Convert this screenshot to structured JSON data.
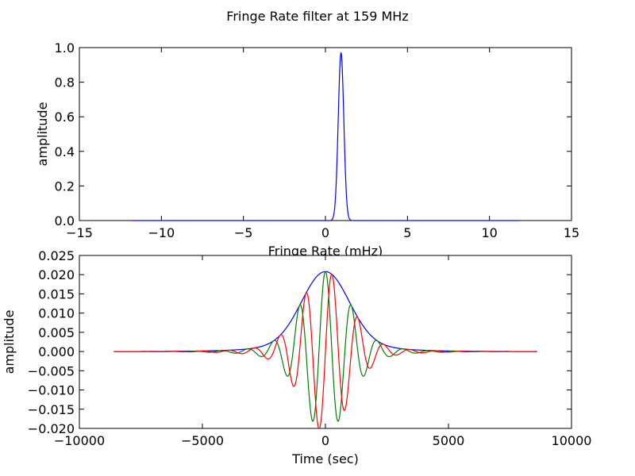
{
  "figure": {
    "title": "Fringe Rate filter at 159 MHz"
  },
  "chart_data": [
    {
      "type": "line",
      "xlabel": "Fringe Rate (mHz)",
      "ylabel": "amplitude",
      "xlim": [
        -15,
        15
      ],
      "ylim": [
        0,
        1.0
      ],
      "x_ticks": [
        -15,
        -10,
        -5,
        0,
        5,
        10,
        15
      ],
      "x_tick_labels": [
        "−15",
        "−10",
        "−5",
        "0",
        "5",
        "10",
        "15"
      ],
      "y_ticks": [
        0,
        0.2,
        0.4,
        0.6,
        0.8,
        1.0
      ],
      "y_tick_labels": [
        "0.0",
        "0.2",
        "0.4",
        "0.6",
        "0.8",
        "1.0"
      ],
      "grid": false,
      "series": [
        {
          "color": "#0000ff",
          "x_range": [
            -11.8,
            11.8
          ],
          "peak_x": 0.95,
          "peak_y": 0.97,
          "sigma": 0.17
        }
      ]
    },
    {
      "type": "line",
      "xlabel": "Time (sec)",
      "ylabel": "amplitude",
      "xlim": [
        -10000,
        10000
      ],
      "ylim": [
        -0.02,
        0.025
      ],
      "x_ticks": [
        -10000,
        -5000,
        0,
        5000,
        10000
      ],
      "x_tick_labels": [
        "−10000",
        "−5000",
        "0",
        "5000",
        "10000"
      ],
      "y_ticks": [
        -0.02,
        -0.015,
        -0.01,
        -0.005,
        0,
        0.005,
        0.01,
        0.015,
        0.02,
        0.025
      ],
      "y_tick_labels": [
        "−0.020",
        "−0.015",
        "−0.010",
        "−0.005",
        "0.000",
        "0.005",
        "0.010",
        "0.015",
        "0.020",
        "0.025"
      ],
      "grid": false,
      "series": [
        {
          "color": "#0000ff",
          "component": "envelope",
          "x_range": [
            -8600,
            8600
          ],
          "peak": 0.0208,
          "center": 0,
          "sigma": 950,
          "tail": 0.14,
          "tail_scale": 2300,
          "freq_mhz": 0.95
        },
        {
          "color": "#008000",
          "component": "real",
          "x_range": [
            -8600,
            8600
          ],
          "peak": 0.0208,
          "center": 0,
          "sigma": 950,
          "tail": 0.14,
          "tail_scale": 2300,
          "freq_mhz": 0.95
        },
        {
          "color": "#ff0000",
          "component": "imag",
          "x_range": [
            -8600,
            8600
          ],
          "peak": 0.0208,
          "center": 0,
          "sigma": 950,
          "tail": 0.14,
          "tail_scale": 2300,
          "freq_mhz": 0.95
        }
      ]
    }
  ]
}
